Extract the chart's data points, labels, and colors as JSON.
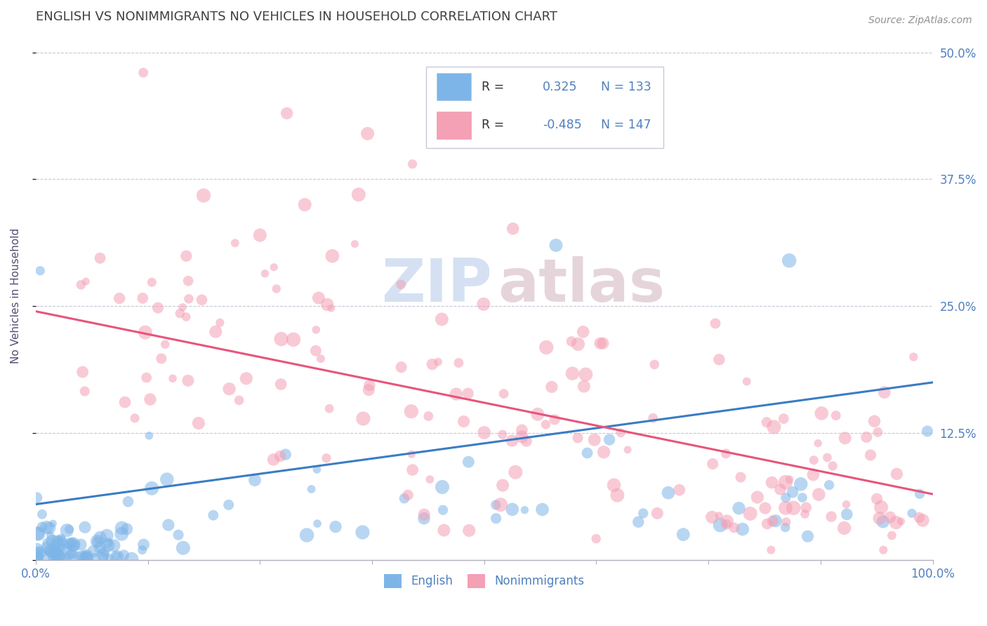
{
  "title": "ENGLISH VS NONIMMIGRANTS NO VEHICLES IN HOUSEHOLD CORRELATION CHART",
  "source": "Source: ZipAtlas.com",
  "ylabel": "No Vehicles in Household",
  "xlim": [
    0.0,
    1.0
  ],
  "ylim": [
    0.0,
    0.52
  ],
  "xticks": [
    0.0,
    0.125,
    0.25,
    0.375,
    0.5,
    0.625,
    0.75,
    0.875,
    1.0
  ],
  "xticklabels": [
    "0.0%",
    "",
    "",
    "",
    "",
    "",
    "",
    "",
    "100.0%"
  ],
  "ytick_positions": [
    0.0,
    0.125,
    0.25,
    0.375,
    0.5
  ],
  "yticklabels_right": [
    "",
    "12.5%",
    "25.0%",
    "37.5%",
    "50.0%"
  ],
  "legend_r_blue": "0.325",
  "legend_n_blue": "133",
  "legend_r_pink": "-0.485",
  "legend_n_pink": "147",
  "english_color": "#7eb5e8",
  "nonimm_color": "#f4a0b5",
  "english_line_color": "#3a7cc4",
  "nonimm_line_color": "#e8547a",
  "watermark_zip": "ZIP",
  "watermark_atlas": "atlas",
  "background_color": "#ffffff",
  "grid_color": "#c8c8d8",
  "title_color": "#404040",
  "axis_label_color": "#505070",
  "tick_color": "#5080c0",
  "legend_text_color": "#5080c0",
  "english_N": 133,
  "nonimm_N": 147,
  "english_R": 0.325,
  "nonimm_R": -0.485,
  "english_line_x0": 0.0,
  "english_line_y0": 0.055,
  "english_line_x1": 1.0,
  "english_line_y1": 0.175,
  "nonimm_line_x0": 0.0,
  "nonimm_line_y0": 0.245,
  "nonimm_line_x1": 1.0,
  "nonimm_line_y1": 0.065
}
